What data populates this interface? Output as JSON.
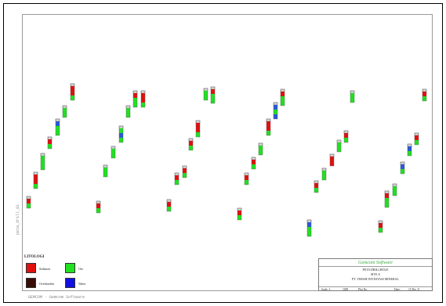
{
  "sheet": {
    "side_label": "peta_drill_01",
    "footer_note": "GEMCOM - Gemcom Software"
  },
  "legend": {
    "title": "LITOLOGI",
    "items": [
      {
        "label": "Sedimen",
        "color": "#e01010"
      },
      {
        "label": "Ore",
        "color": "#22e022"
      },
      {
        "label": "Overburden",
        "color": "#3a0c06"
      },
      {
        "label": "Water",
        "color": "#1010e0"
      }
    ]
  },
  "title_block": {
    "brand": "Gemcom Software",
    "line1": "PETA DRILLHOLE",
    "line2": "SITE A",
    "line3": "PT. TIMAH INVESTASI MINERAL",
    "scale_label": "Scale: 1:",
    "scale_value": "1000",
    "plot_label": "Plot No.",
    "date_label": "Date:",
    "date_value": "15 Dec 11"
  },
  "colors": {
    "red": "#e01010",
    "green": "#22e022",
    "blue": "#2a5ad8",
    "dark": "#3a0c06",
    "cap": "#d8d8d8"
  },
  "drillholes": [
    {
      "segments": [
        "red",
        "green"
      ]
    },
    {
      "segments": [
        "red",
        "red",
        "green"
      ]
    },
    {
      "segments": [
        "green",
        "green",
        "green"
      ]
    },
    {
      "segments": [
        "red",
        "green"
      ]
    },
    {
      "segments": [
        "blue",
        "green",
        "green"
      ]
    },
    {
      "segments": [
        "green",
        "green"
      ]
    },
    {
      "segments": [
        "red",
        "red",
        "green"
      ]
    },
    {
      "segments": [
        "red",
        "green"
      ]
    },
    {
      "segments": [
        "green",
        "green"
      ]
    },
    {
      "segments": [
        "green",
        "green"
      ]
    },
    {
      "segments": [
        "green",
        "blue",
        "green"
      ]
    },
    {
      "segments": [
        "green",
        "green"
      ]
    },
    {
      "segments": [
        "red",
        "green",
        "green"
      ]
    },
    {
      "segments": [
        "red",
        "red",
        "green"
      ]
    },
    {
      "segments": [
        "red",
        "green"
      ]
    },
    {
      "segments": [
        "red",
        "green"
      ]
    },
    {
      "segments": [
        "red",
        "green"
      ]
    },
    {
      "segments": [
        "red",
        "green"
      ]
    },
    {
      "segments": [
        "red",
        "red",
        "green"
      ]
    },
    {
      "segments": [
        "green",
        "green"
      ]
    },
    {
      "segments": [
        "red",
        "green",
        "green"
      ]
    },
    {
      "segments": [
        "red",
        "green"
      ]
    },
    {
      "segments": [
        "red",
        "green"
      ]
    },
    {
      "segments": [
        "red",
        "green"
      ]
    },
    {
      "segments": [
        "green",
        "green"
      ]
    },
    {
      "segments": [
        "red",
        "red",
        "green"
      ]
    },
    {
      "segments": [
        "blue",
        "green",
        "blue"
      ]
    },
    {
      "segments": [
        "red",
        "green",
        "green"
      ]
    },
    {
      "segments": [
        "blue",
        "green",
        "green"
      ]
    },
    {
      "segments": [
        "red",
        "green"
      ]
    },
    {
      "segments": [
        "green",
        "green"
      ]
    },
    {
      "segments": [
        "red",
        "red"
      ]
    },
    {
      "segments": [
        "green",
        "green"
      ]
    },
    {
      "segments": [
        "red",
        "green"
      ]
    },
    {
      "segments": [
        "green",
        "green"
      ]
    },
    {
      "segments": [
        "red",
        "green"
      ]
    },
    {
      "segments": [
        "red",
        "green",
        "green"
      ]
    },
    {
      "segments": [
        "green",
        "green"
      ]
    },
    {
      "segments": [
        "blue",
        "green"
      ]
    },
    {
      "segments": [
        "blue",
        "green"
      ]
    },
    {
      "segments": [
        "red",
        "green"
      ]
    },
    {
      "segments": [
        "red",
        "green"
      ]
    },
    {
      "segments": [
        "red",
        "green"
      ]
    },
    {
      "segments": [
        "red",
        "green",
        "green"
      ]
    },
    {
      "segments": [
        "blue",
        "red",
        "green"
      ]
    },
    {
      "segments": [
        "green",
        "green"
      ]
    }
  ]
}
